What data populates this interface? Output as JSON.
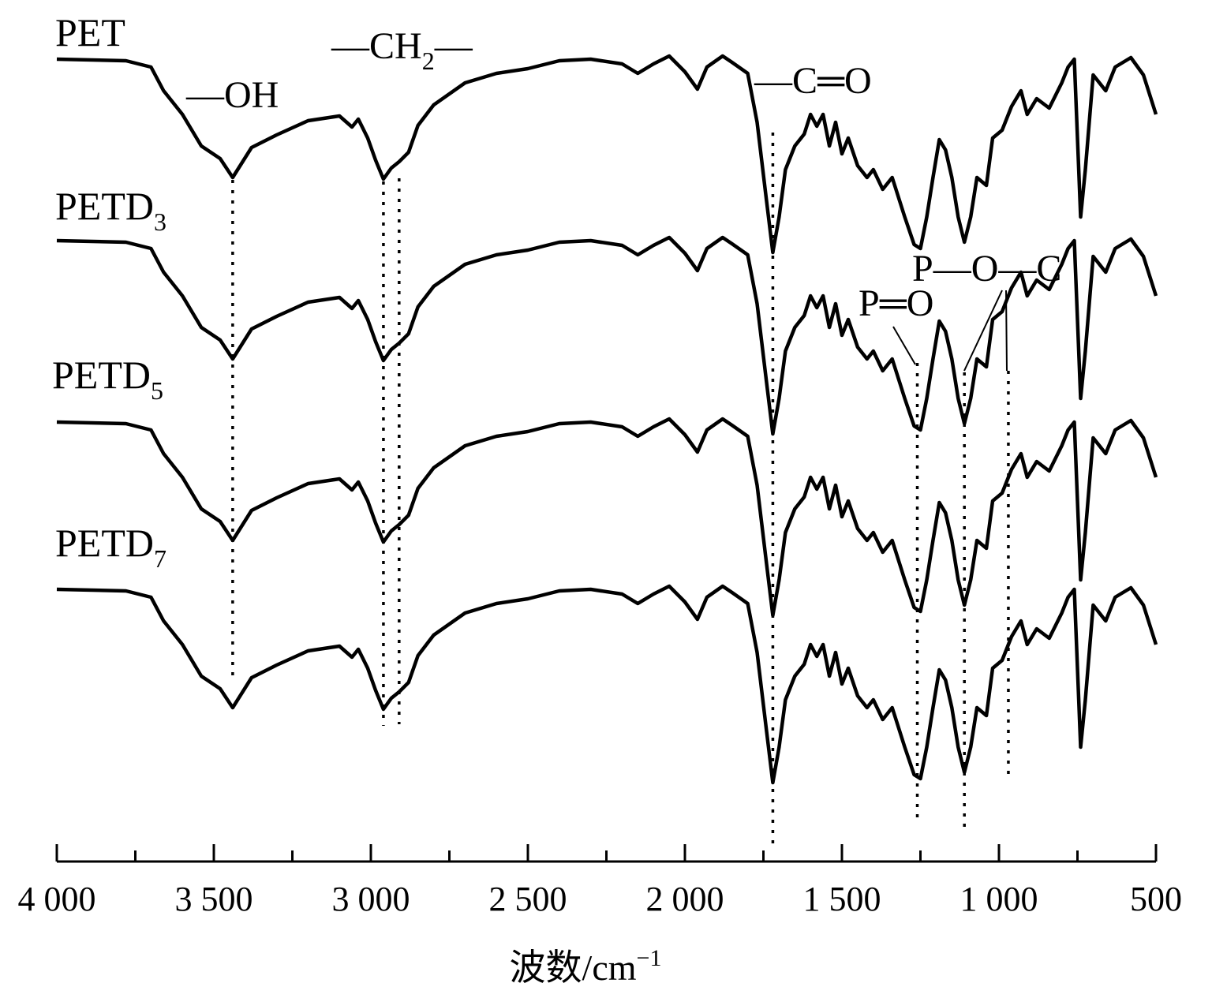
{
  "chart_data": {
    "type": "line",
    "title": "",
    "xlabel": "波数/cm",
    "xlabel_superscript": "−1",
    "ylabel": "",
    "xlim": [
      4000,
      500
    ],
    "x_reversed": true,
    "x_ticks": [
      4000,
      3500,
      3000,
      2500,
      2000,
      1500,
      1000,
      500
    ],
    "x_tick_labels": [
      "4 000",
      "3 500",
      "3 000",
      "2 500",
      "2 000",
      "1 500",
      "1 000",
      "500"
    ],
    "y_ticks_shown": false,
    "grid": false,
    "series": [
      {
        "name": "PET",
        "label_main": "PET",
        "label_sub": ""
      },
      {
        "name": "PETD3",
        "label_main": "PETD",
        "label_sub": "3"
      },
      {
        "name": "PETD5",
        "label_main": "PETD",
        "label_sub": "5"
      },
      {
        "name": "PETD7",
        "label_main": "PETD",
        "label_sub": "7"
      }
    ],
    "annotations": [
      {
        "text": "—OH",
        "x": 3440
      },
      {
        "text": "—CH",
        "sub": "2",
        "tail": "—",
        "x": [
          2960,
          2910
        ]
      },
      {
        "text": "—C═O",
        "x": 1720
      },
      {
        "text": "P═O",
        "x": 1260
      },
      {
        "text": "P—O—C",
        "x": [
          1110,
          970
        ]
      }
    ],
    "peak_lines": [
      3440,
      2960,
      2910,
      1720,
      1260,
      1110,
      970
    ]
  }
}
